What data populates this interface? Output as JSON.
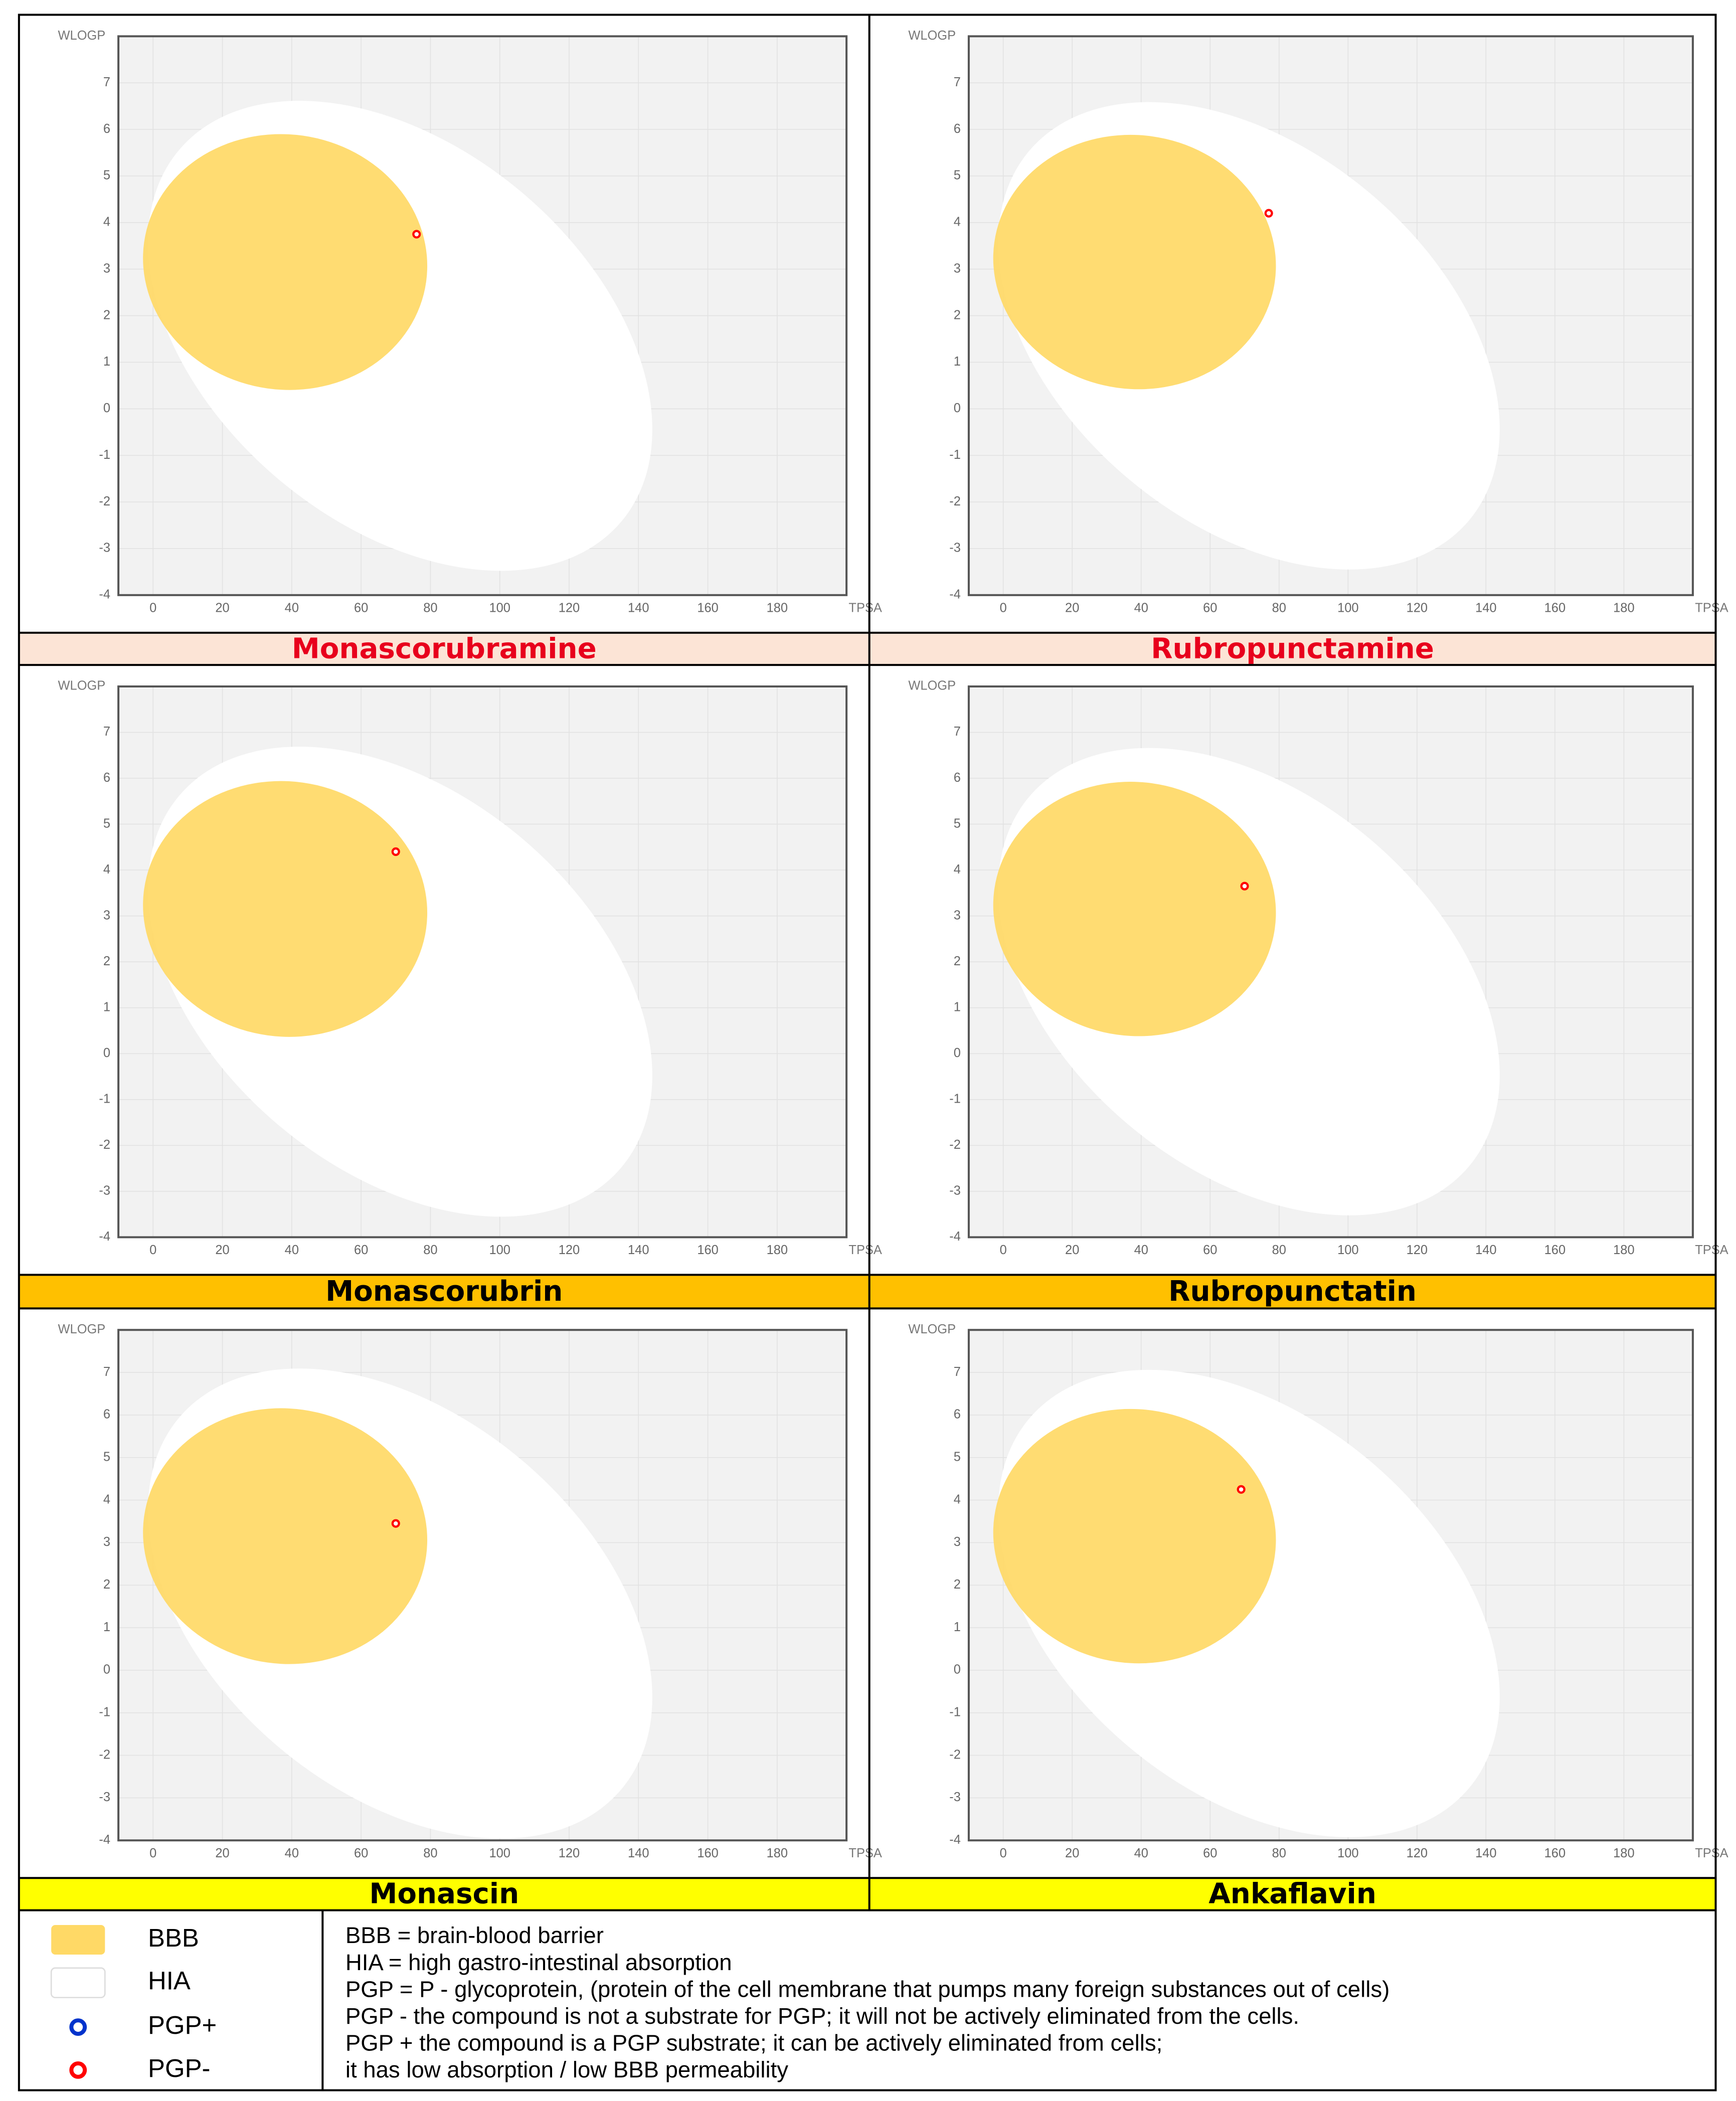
{
  "chart_data": [
    {
      "type": "scatter",
      "title": "Monascorubramine",
      "title_color": "#e8001c",
      "band_color": "#fce4d6",
      "x_label": "TPSA",
      "y_label": "WLOGP",
      "x": [
        76
      ],
      "values": [
        3.75
      ],
      "color": "#ff0000",
      "xlim": [
        -10,
        200
      ],
      "ylim": [
        -4,
        8
      ],
      "xticks": [
        0,
        20,
        40,
        60,
        80,
        100,
        120,
        140,
        160,
        180
      ],
      "yticks": [
        -4,
        -3,
        -2,
        -1,
        0,
        1,
        2,
        3,
        4,
        5,
        6,
        7
      ],
      "grid": true
    },
    {
      "type": "scatter",
      "title": "Rubropunctamine",
      "title_color": "#e8001c",
      "band_color": "#fce4d6",
      "x_label": "TPSA",
      "y_label": "WLOGP",
      "x": [
        77
      ],
      "values": [
        4.2
      ],
      "color": "#ff0000",
      "xlim": [
        -10,
        200
      ],
      "ylim": [
        -4,
        8
      ],
      "xticks": [
        0,
        20,
        40,
        60,
        80,
        100,
        120,
        140,
        160,
        180
      ],
      "yticks": [
        -4,
        -3,
        -2,
        -1,
        0,
        1,
        2,
        3,
        4,
        5,
        6,
        7
      ],
      "grid": true
    },
    {
      "type": "scatter",
      "title": "Monascorubrin",
      "title_color": "#000000",
      "band_color": "#ffc000",
      "x_label": "TPSA",
      "y_label": "WLOGP",
      "x": [
        70
      ],
      "values": [
        4.4
      ],
      "color": "#ff0000",
      "xlim": [
        -10,
        200
      ],
      "ylim": [
        -4,
        8
      ],
      "xticks": [
        0,
        20,
        40,
        60,
        80,
        100,
        120,
        140,
        160,
        180
      ],
      "yticks": [
        -4,
        -3,
        -2,
        -1,
        0,
        1,
        2,
        3,
        4,
        5,
        6,
        7
      ],
      "grid": true
    },
    {
      "type": "scatter",
      "title": "Rubropunctatin",
      "title_color": "#000000",
      "band_color": "#ffc000",
      "x_label": "TPSA",
      "y_label": "WLOGP",
      "x": [
        70
      ],
      "values": [
        3.65
      ],
      "color": "#ff0000",
      "xlim": [
        -10,
        200
      ],
      "ylim": [
        -4,
        8
      ],
      "xticks": [
        0,
        20,
        40,
        60,
        80,
        100,
        120,
        140,
        160,
        180
      ],
      "yticks": [
        -4,
        -3,
        -2,
        -1,
        0,
        1,
        2,
        3,
        4,
        5,
        6,
        7
      ],
      "grid": true
    },
    {
      "type": "scatter",
      "title": "Monascin",
      "title_color": "#000000",
      "band_color": "#ffff00",
      "x_label": "TPSA",
      "y_label": "WLOGP",
      "x": [
        70
      ],
      "values": [
        3.45
      ],
      "color": "#ff0000",
      "xlim": [
        -10,
        200
      ],
      "ylim": [
        -4,
        8
      ],
      "xticks": [
        0,
        20,
        40,
        60,
        80,
        100,
        120,
        140,
        160,
        180
      ],
      "yticks": [
        -4,
        -3,
        -2,
        -1,
        0,
        1,
        2,
        3,
        4,
        5,
        6,
        7
      ],
      "grid": true
    },
    {
      "type": "scatter",
      "title": "Ankaflavin",
      "title_color": "#000000",
      "band_color": "#ffff00",
      "x_label": "TPSA",
      "y_label": "WLOGP",
      "x": [
        69
      ],
      "values": [
        4.25
      ],
      "color": "#ff0000",
      "xlim": [
        -10,
        200
      ],
      "ylim": [
        -4,
        8
      ],
      "xticks": [
        0,
        20,
        40,
        60,
        80,
        100,
        120,
        140,
        160,
        180
      ],
      "yticks": [
        -4,
        -3,
        -2,
        -1,
        0,
        1,
        2,
        3,
        4,
        5,
        6,
        7
      ],
      "grid": true
    }
  ],
  "legend": {
    "items": [
      {
        "label": "BBB",
        "color": "#ffd966"
      },
      {
        "label": "HIA",
        "color": "#ffffff"
      },
      {
        "label": "PGP+",
        "color": "#0033cc"
      },
      {
        "label": "PGP-",
        "color": "#ff0000"
      }
    ],
    "notes": [
      "BBB  = brain-blood barrier",
      "HIA = high gastro-intestinal absorption",
      "PGP = P - glycoprotein, (protein of the cell membrane that pumps many foreign substances out of cells)",
      "PGP -   the compound is not a substrate for PGP; it will not be actively eliminated from the cells.",
      "PGP +  the compound is a PGP substrate; it can be actively eliminated from cells;",
      "it has low absorption / low BBB permeability"
    ]
  }
}
